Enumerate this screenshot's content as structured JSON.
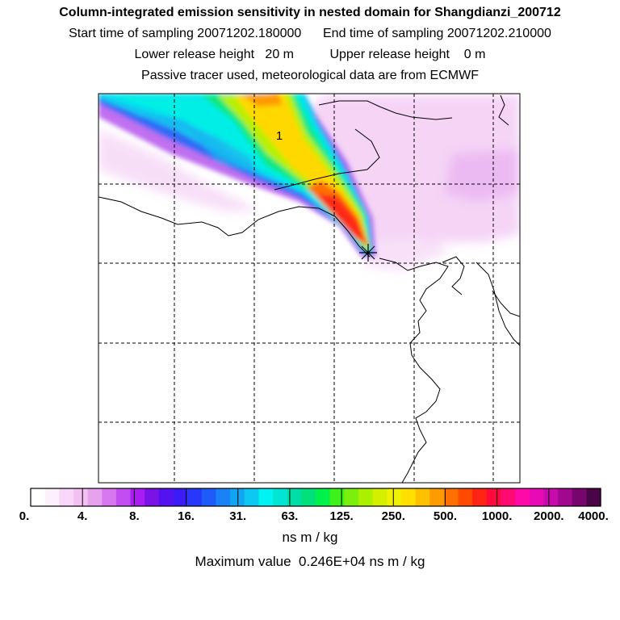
{
  "header": {
    "title": "Column-integrated emission sensitivity in nested domain for Shangdianzi_200712",
    "start_label": "Start time of sampling",
    "start_value": "20071202.180000",
    "end_label": "End time of sampling",
    "end_value": "20071202.210000",
    "lower_label": "Lower release height",
    "lower_value": "20 m",
    "upper_label": "Upper release height",
    "upper_value": "0 m",
    "info": "Passive tracer used, meteorological data are from ECMWF"
  },
  "map": {
    "plume_label": "1",
    "release_marker": "release-site-star"
  },
  "colorbar": {
    "tick_labels": [
      "0.",
      "4.",
      "8.",
      "16.",
      "31.",
      "63.",
      "125.",
      "250.",
      "500.",
      "1000.",
      "2000.",
      "4000."
    ],
    "colors": [
      "#ffffff",
      "#fdf0fd",
      "#f8d8f8",
      "#f2c0f2",
      "#e6a2ec",
      "#d778f0",
      "#c24ef2",
      "#a81ef2",
      "#7a14e6",
      "#5412f0",
      "#3c1cf6",
      "#2838fa",
      "#1e5cfa",
      "#1a82f6",
      "#12a6f2",
      "#0cc8f2",
      "#00f2f2",
      "#00e6d2",
      "#00e0a6",
      "#00e07a",
      "#00f24a",
      "#3cf21a",
      "#7af00c",
      "#aaf000",
      "#d2f000",
      "#f0f000",
      "#ffe000",
      "#ffc000",
      "#ff9a00",
      "#ff7000",
      "#ff4a00",
      "#ff2414",
      "#ff0a3c",
      "#ff0a72",
      "#ff0aa6",
      "#e80ab4",
      "#c80aac",
      "#a0088e",
      "#76066c",
      "#4c0448"
    ],
    "unit": "ns m / kg",
    "max_label": "Maximum value",
    "max_value": "0.246E+04 ns m / kg"
  }
}
